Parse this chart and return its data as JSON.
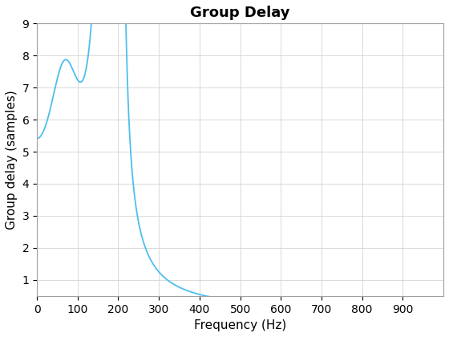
{
  "title": "Group Delay",
  "xlabel": "Frequency (Hz)",
  "ylabel": "Group delay (samples)",
  "line_color": "#4DBEEE",
  "line_width": 1.3,
  "xlim": [
    0,
    1000
  ],
  "ylim": [
    0.5,
    9
  ],
  "yticks": [
    1,
    2,
    3,
    4,
    5,
    6,
    7,
    8,
    9
  ],
  "xticks": [
    0,
    100,
    200,
    300,
    400,
    500,
    600,
    700,
    800,
    900
  ],
  "grid": true,
  "title_fontsize": 13,
  "label_fontsize": 11,
  "tick_fontsize": 10,
  "background_color": "#ffffff",
  "fs": 2000
}
